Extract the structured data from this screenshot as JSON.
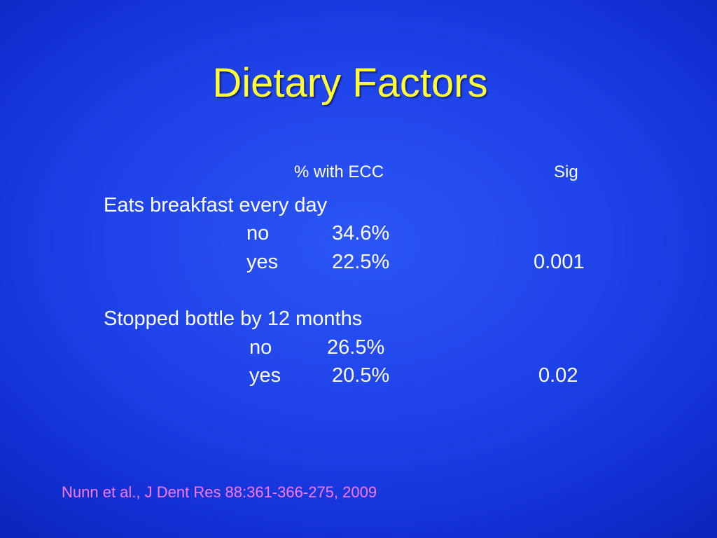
{
  "slide": {
    "title": "Dietary Factors",
    "headers": {
      "pct": "% with ECC",
      "sig": "Sig"
    },
    "groups": [
      {
        "label": "Eats breakfast every day",
        "rows": [
          {
            "answer": "no",
            "pct": "34.6%",
            "sig": ""
          },
          {
            "answer": "yes",
            "pct": "22.5%",
            "sig": "0.001"
          }
        ]
      },
      {
        "label": "Stopped bottle by 12 months",
        "rows": [
          {
            "answer": "no",
            "pct": "26.5%",
            "sig": ""
          },
          {
            "answer": "yes",
            "pct": "20.5%",
            "sig": "0.02"
          }
        ]
      }
    ],
    "citation": "Nunn et al., J Dent Res 88:361-366-275, 2009"
  },
  "colors": {
    "background": "#1f44ea",
    "title": "#ffff33",
    "body_text": "#ffffff",
    "citation": "#ff77ff"
  }
}
